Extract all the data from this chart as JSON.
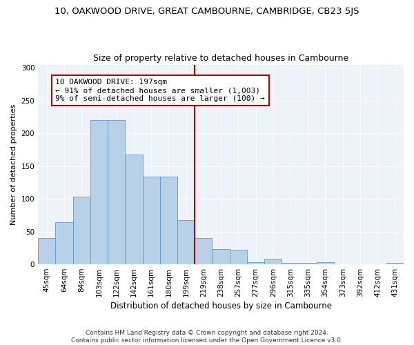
{
  "title": "10, OAKWOOD DRIVE, GREAT CAMBOURNE, CAMBRIDGE, CB23 5JS",
  "subtitle": "Size of property relative to detached houses in Cambourne",
  "xlabel": "Distribution of detached houses by size in Cambourne",
  "ylabel": "Number of detached properties",
  "categories": [
    "45sqm",
    "64sqm",
    "84sqm",
    "103sqm",
    "122sqm",
    "142sqm",
    "161sqm",
    "180sqm",
    "199sqm",
    "219sqm",
    "238sqm",
    "257sqm",
    "277sqm",
    "296sqm",
    "315sqm",
    "335sqm",
    "354sqm",
    "373sqm",
    "392sqm",
    "412sqm",
    "431sqm"
  ],
  "values": [
    40,
    64,
    103,
    220,
    220,
    168,
    134,
    134,
    68,
    40,
    23,
    22,
    3,
    8,
    2,
    2,
    3,
    0,
    0,
    0,
    2
  ],
  "bar_color": "#b8d0e8",
  "bar_edge_color": "#5b9bd5",
  "vline_color": "#c00000",
  "annotation_text": "10 OAKWOOD DRIVE: 197sqm\n← 91% of detached houses are smaller (1,003)\n9% of semi-detached houses are larger (100) →",
  "annotation_box_color": "#c00000",
  "ylim": [
    0,
    305
  ],
  "yticks": [
    0,
    50,
    100,
    150,
    200,
    250,
    300
  ],
  "background_color": "#eef2f9",
  "footer": "Contains HM Land Registry data © Crown copyright and database right 2024.\nContains public sector information licensed under the Open Government Licence v3.0.",
  "title_fontsize": 9.5,
  "subtitle_fontsize": 9,
  "xlabel_fontsize": 8.5,
  "ylabel_fontsize": 8,
  "tick_fontsize": 7.5,
  "annotation_fontsize": 8,
  "footer_fontsize": 6.5
}
